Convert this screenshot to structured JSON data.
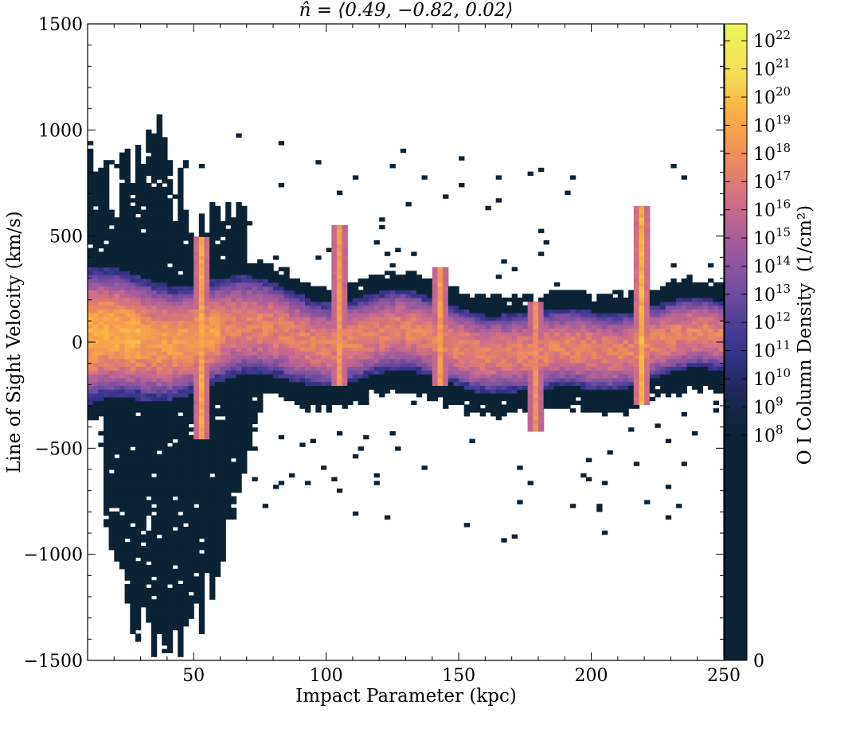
{
  "chart_data": {
    "type": "heatmap",
    "title": "n̂ = ⟨0.49, −0.82, 0.02⟩",
    "xlabel": "Impact Parameter (kpc)",
    "ylabel": "Line of Sight Velocity (km/s)",
    "colorbar_label": "O I Column Density",
    "colorbar_unit": "(1/cm²)",
    "xlim": [
      10,
      250
    ],
    "ylim": [
      -1500,
      1500
    ],
    "x_ticks": [
      "50",
      "100",
      "150",
      "200",
      "250"
    ],
    "x_tick_values": [
      50,
      100,
      150,
      200,
      250
    ],
    "y_ticks": [
      "−1500",
      "−1000",
      "−500",
      "0",
      "500",
      "1000",
      "1500"
    ],
    "y_tick_values": [
      -1500,
      -1000,
      -500,
      0,
      500,
      1000,
      1500
    ],
    "colorbar_ticks": [
      {
        "base": "0",
        "exp": ""
      },
      {
        "base": "10",
        "exp": "8"
      },
      {
        "base": "10",
        "exp": "9"
      },
      {
        "base": "10",
        "exp": "10"
      },
      {
        "base": "10",
        "exp": "11"
      },
      {
        "base": "10",
        "exp": "12"
      },
      {
        "base": "10",
        "exp": "13"
      },
      {
        "base": "10",
        "exp": "14"
      },
      {
        "base": "10",
        "exp": "15"
      },
      {
        "base": "10",
        "exp": "16"
      },
      {
        "base": "10",
        "exp": "17"
      },
      {
        "base": "10",
        "exp": "18"
      },
      {
        "base": "10",
        "exp": "19"
      },
      {
        "base": "10",
        "exp": "20"
      },
      {
        "base": "10",
        "exp": "21"
      },
      {
        "base": "10",
        "exp": "22"
      }
    ],
    "colorbar_tick_values": [
      0,
      8,
      9,
      10,
      11,
      12,
      13,
      14,
      15,
      16,
      17,
      18,
      19,
      20,
      21,
      22
    ],
    "colorbar_range": [
      0,
      22.6
    ],
    "colormap": [
      "#0b2335",
      "#1d2a5c",
      "#3a3590",
      "#6a4a9e",
      "#9a5a9e",
      "#c96a8c",
      "#ee8a5f",
      "#f9ad45",
      "#f4e157",
      "#e9f55a"
    ],
    "features": {
      "band_center_kms": [
        [
          10,
          0
        ],
        [
          50,
          50
        ],
        [
          100,
          30
        ],
        [
          150,
          10
        ],
        [
          180,
          -80
        ],
        [
          220,
          20
        ],
        [
          250,
          0
        ]
      ],
      "band_halfwidth_kms": [
        [
          10,
          280
        ],
        [
          50,
          220
        ],
        [
          100,
          170
        ],
        [
          150,
          160
        ],
        [
          200,
          160
        ],
        [
          250,
          140
        ]
      ],
      "spikes": [
        {
          "x": 52,
          "v_min": -450,
          "v_max": 500,
          "peak_log_column": 19.6
        },
        {
          "x": 104,
          "v_min": -200,
          "v_max": 550,
          "peak_log_column": 19.0
        },
        {
          "x": 142,
          "v_min": -200,
          "v_max": 350,
          "peak_log_column": 19.2
        },
        {
          "x": 178,
          "v_min": -420,
          "v_max": 200,
          "peak_log_column": 18.5
        },
        {
          "x": 218,
          "v_min": -300,
          "v_max": 650,
          "peak_log_column": 20.0
        }
      ],
      "low_velocity_plume": {
        "x_min": 15,
        "x_max": 75,
        "v_min": -1270,
        "peak_log_column": 8.0
      },
      "high_velocity_plume": {
        "x": 35,
        "v_max": 1180,
        "peak_log_column": 8.0
      }
    }
  }
}
